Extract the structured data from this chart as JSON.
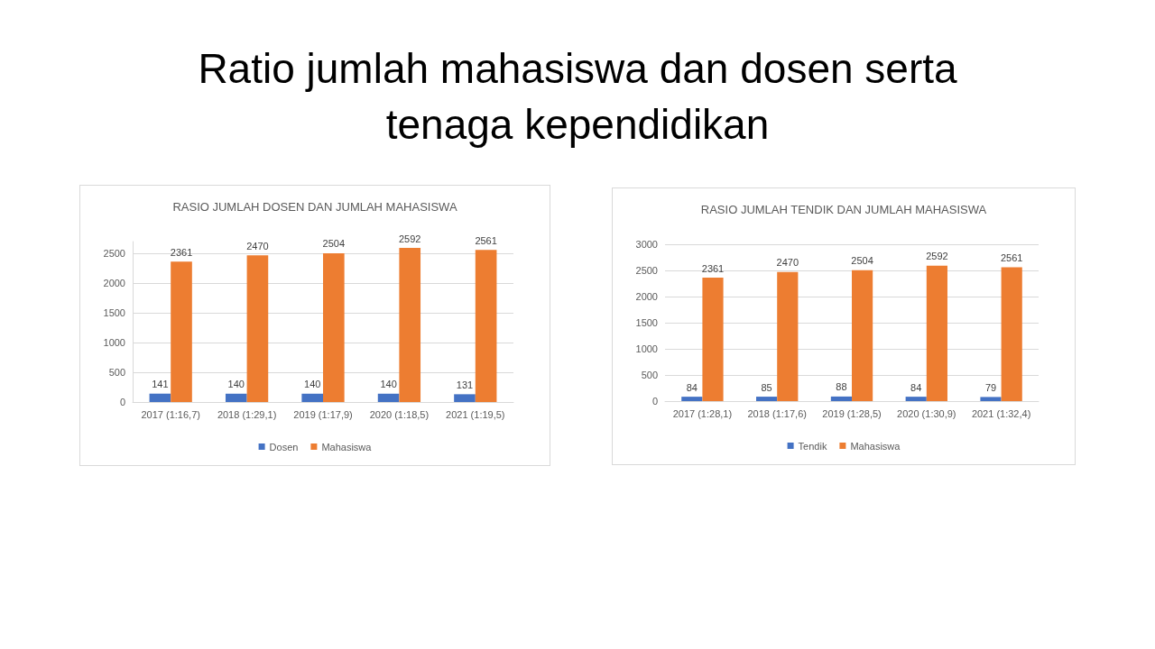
{
  "chart_data": [
    {
      "type": "bar",
      "title": "RASIO JUMLAH DOSEN DAN JUMLAH MAHASISWA",
      "annotations": [
        "Ratio jumlah mahasiswa dan dosen serta tenaga kependidikan"
      ],
      "categories": [
        "2017 (1:16,7)",
        "2018 (1:29,1)",
        "2019 (1:17,9)",
        "2020 (1:18,5)",
        "2021 (1:19,5)"
      ],
      "series": [
        {
          "name": "Dosen",
          "color": "#4472c4",
          "values": [
            141,
            140,
            140,
            140,
            131
          ]
        },
        {
          "name": "Mahasiswa",
          "color": "#ed7d31",
          "values": [
            2361,
            2470,
            2504,
            2592,
            2561
          ]
        }
      ],
      "ylim": [
        0,
        2700
      ],
      "yticks": [
        0,
        500,
        1000,
        1500,
        2000,
        2500
      ],
      "grid": "y",
      "legend": "bottom",
      "data_labels": true
    },
    {
      "type": "bar",
      "title": "RASIO JUMLAH TENDIK DAN JUMLAH MAHASISWA",
      "categories": [
        "2017 (1:28,1)",
        "2018 (1:17,6)",
        "2019 (1:28,5)",
        "2020 (1:30,9)",
        "2021 (1:32,4)"
      ],
      "series": [
        {
          "name": "Tendik",
          "color": "#4472c4",
          "values": [
            84,
            85,
            88,
            84,
            79
          ]
        },
        {
          "name": "Mahasiswa",
          "color": "#ed7d31",
          "values": [
            2361,
            2470,
            2504,
            2592,
            2561
          ]
        }
      ],
      "ylim": [
        0,
        3000
      ],
      "yticks": [
        0,
        500,
        1000,
        1500,
        2000,
        2500,
        3000
      ],
      "grid": "y",
      "legend": "bottom",
      "data_labels": true
    }
  ]
}
